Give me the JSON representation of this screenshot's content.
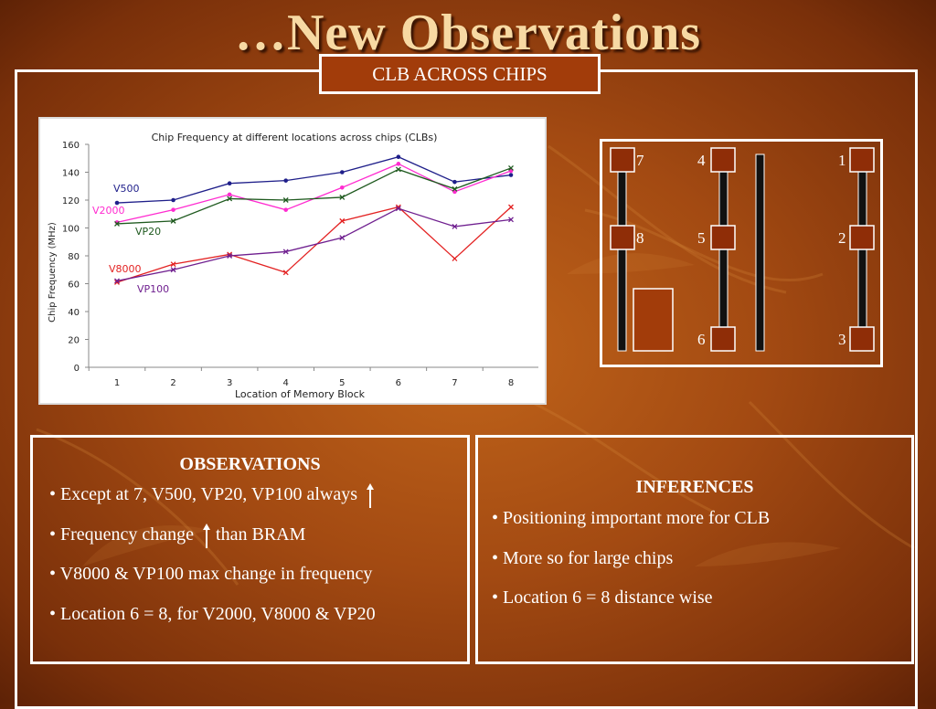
{
  "slide": {
    "title": "…New Observations",
    "subtitle": "CLB ACROSS CHIPS"
  },
  "chart_data": {
    "type": "line",
    "title": "Chip Frequency at different locations across chips (CLBs)",
    "xlabel": "Location of Memory Block",
    "ylabel": "Chip Frequency (MHz)",
    "categories": [
      "1",
      "2",
      "3",
      "4",
      "5",
      "6",
      "7",
      "8"
    ],
    "ylim": [
      0,
      160
    ],
    "yticks": [
      "0",
      "20",
      "40",
      "60",
      "80",
      "100",
      "120",
      "140",
      "160"
    ],
    "grid": false,
    "series": [
      {
        "name": "V500",
        "color": "#1f1f8a",
        "marker": "dot",
        "values": [
          118,
          120,
          132,
          134,
          140,
          151,
          133,
          138
        ]
      },
      {
        "name": "V2000",
        "color": "#ff2bd0",
        "marker": "dot",
        "values": [
          104,
          113,
          124,
          113,
          129,
          146,
          126,
          141
        ]
      },
      {
        "name": "VP20",
        "color": "#1f5a1f",
        "marker": "x",
        "values": [
          103,
          105,
          121,
          120,
          122,
          142,
          128,
          143
        ]
      },
      {
        "name": "V8000",
        "color": "#e32222",
        "marker": "x",
        "values": [
          61,
          74,
          81,
          68,
          105,
          115,
          78,
          115
        ]
      },
      {
        "name": "VP100",
        "color": "#6f1f8f",
        "marker": "x",
        "values": [
          62,
          70,
          80,
          83,
          93,
          114,
          101,
          106
        ]
      }
    ]
  },
  "diagram": {
    "block_labels": [
      "7",
      "8",
      "4",
      "5",
      "6",
      "1",
      "2",
      "3"
    ]
  },
  "observations": {
    "heading": "OBSERVATIONS",
    "items": [
      "• Except at 7, V500, VP20, VP100 always",
      "• Frequency change",
      "than BRAM",
      "• V8000 & VP100 max change in frequency",
      "• Location 6 = 8, for V2000, V8000 & VP20"
    ]
  },
  "inferences": {
    "heading": "INFERENCES",
    "items": [
      "• Positioning important more for CLB",
      "• More so for large chips",
      "• Location 6 = 8 distance wise"
    ]
  },
  "icons": {
    "up_arrow": "up-arrow-icon"
  }
}
